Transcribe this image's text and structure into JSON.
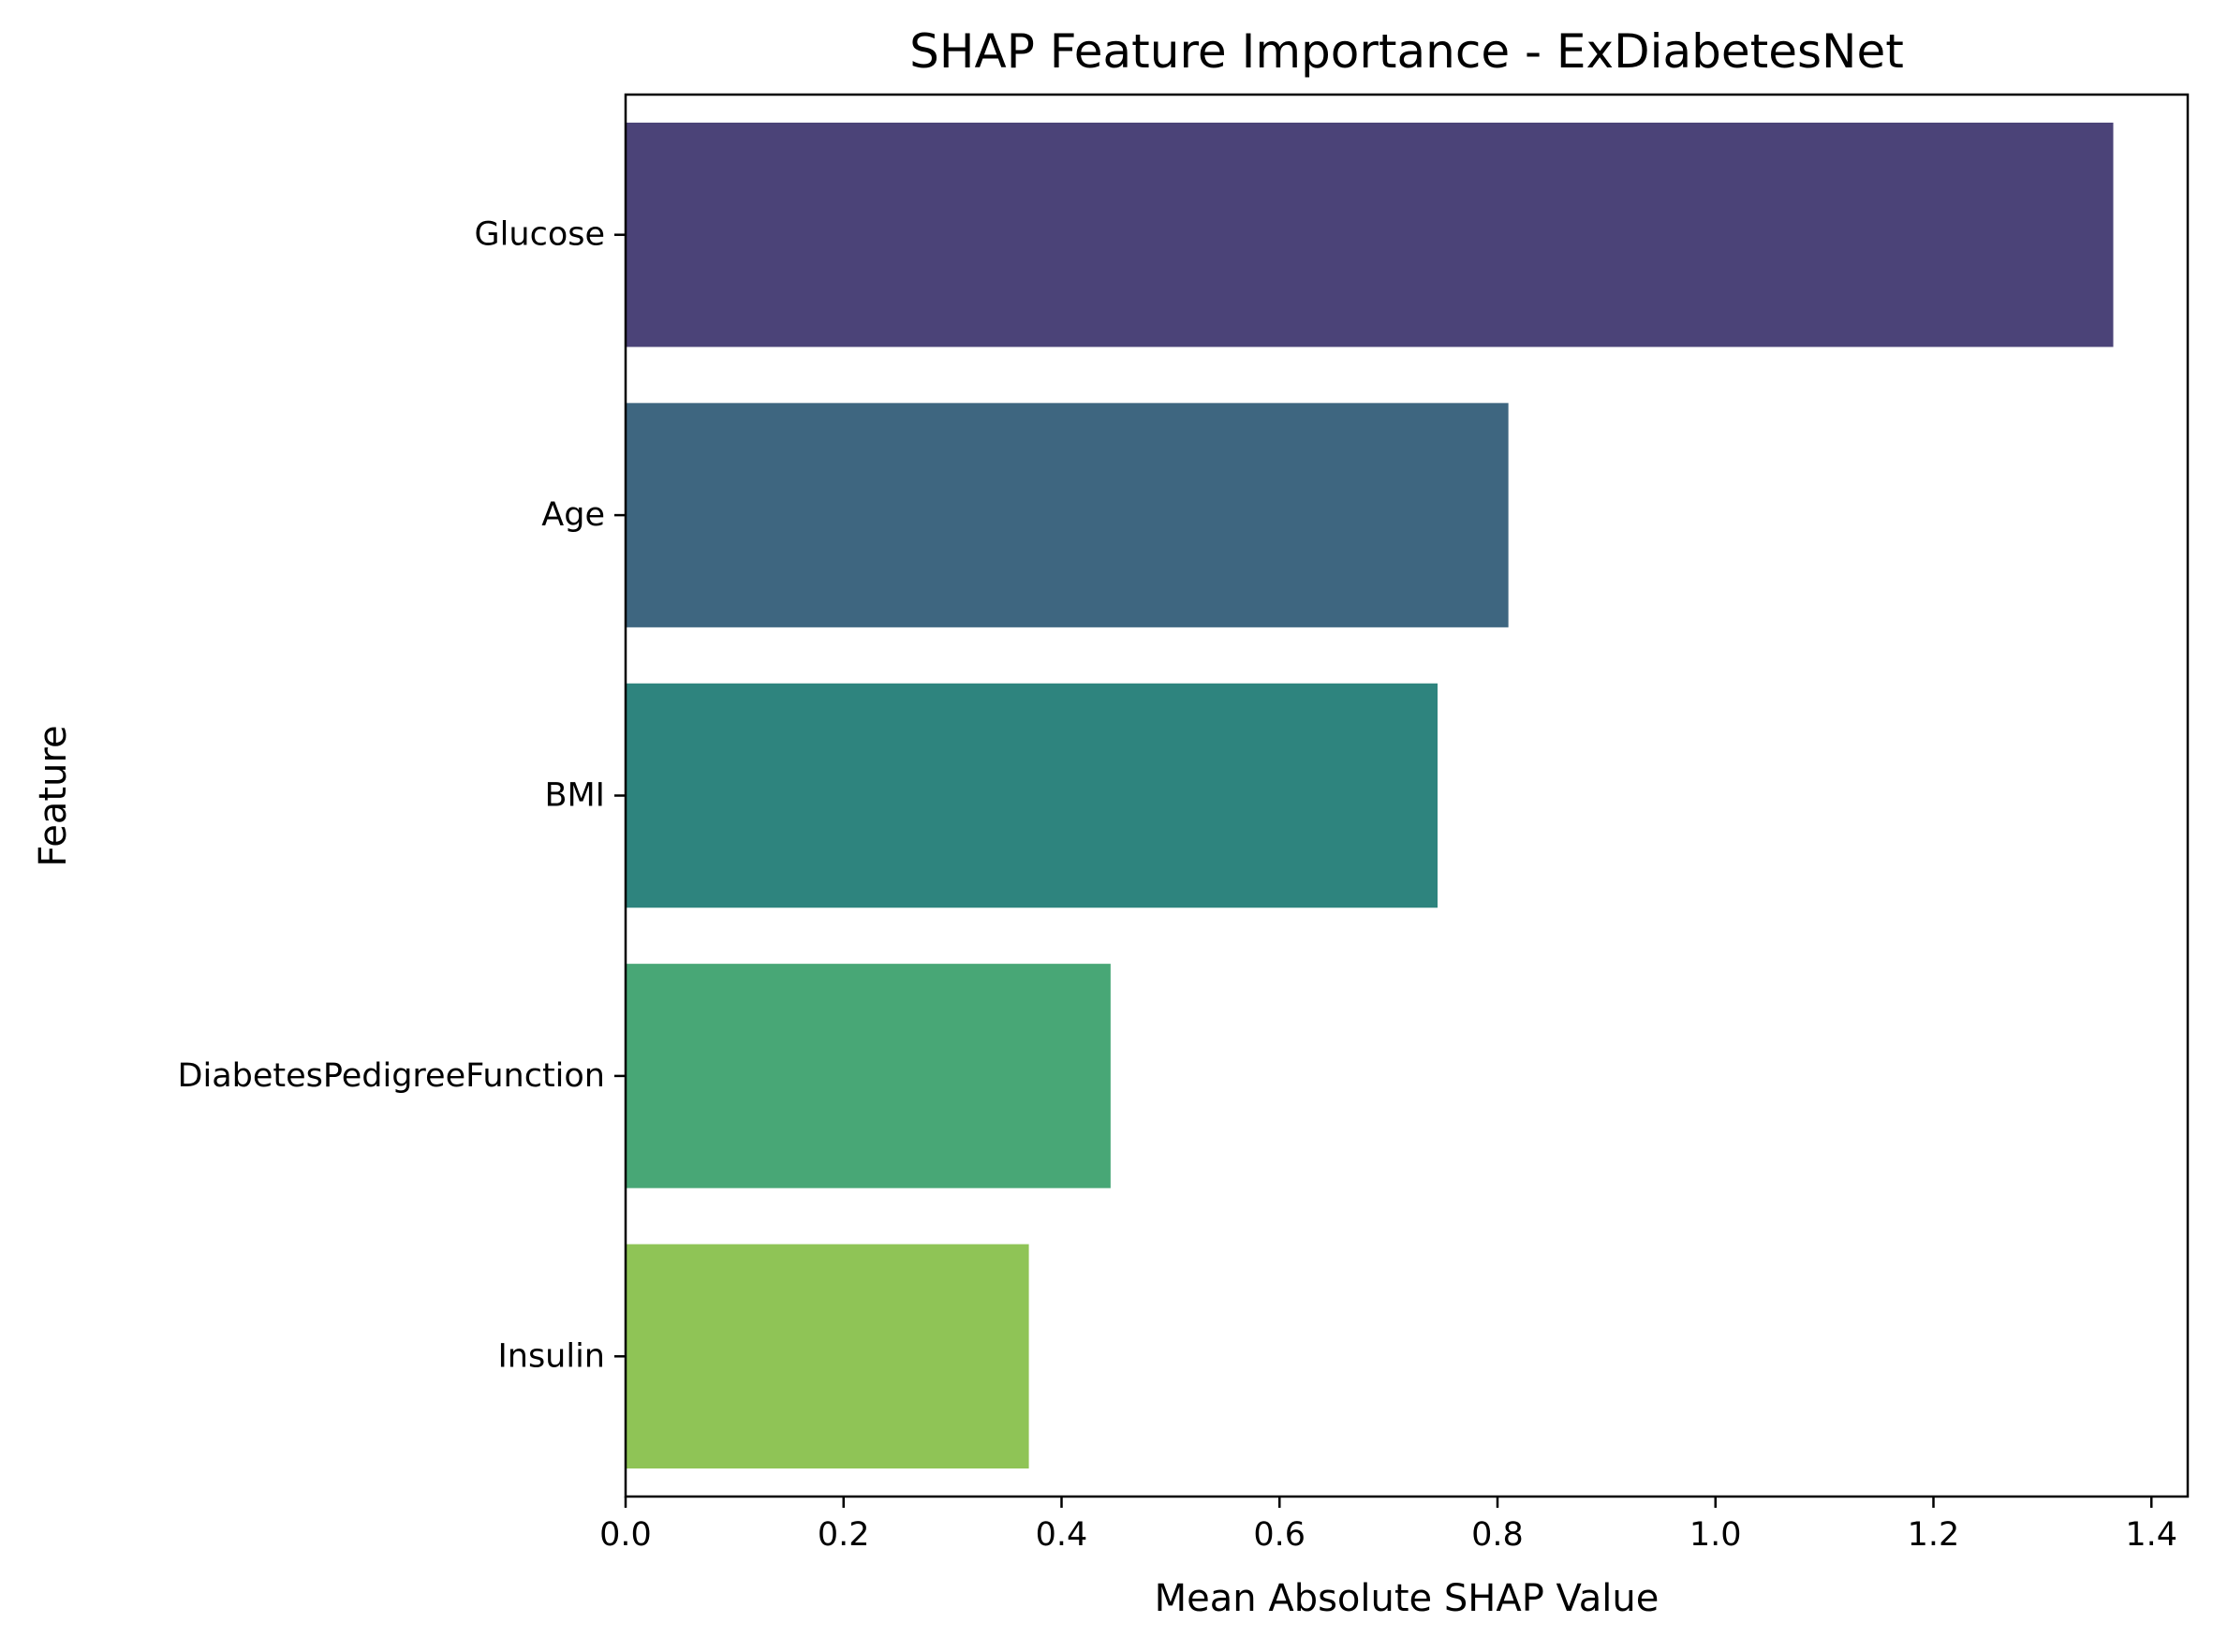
{
  "chart_data": {
    "type": "bar",
    "orientation": "horizontal",
    "title": "SHAP Feature Importance - ExDiabetesNet",
    "xlabel": "Mean Absolute SHAP Value",
    "ylabel": "Feature",
    "categories": [
      "Glucose",
      "Age",
      "BMI",
      "DiabetesPedigreeFunction",
      "Insulin"
    ],
    "values": [
      1.365,
      0.81,
      0.745,
      0.445,
      0.37
    ],
    "colors": [
      "#4b4378",
      "#3e6680",
      "#2e847e",
      "#48a776",
      "#8fc456"
    ],
    "xlim": [
      0,
      1.4333
    ],
    "xticks": [
      0.0,
      0.2,
      0.4,
      0.6,
      0.8,
      1.0,
      1.2,
      1.4
    ],
    "xtick_labels": [
      "0.0",
      "0.2",
      "0.4",
      "0.6",
      "0.8",
      "1.0",
      "1.2",
      "1.4"
    ],
    "grid": false,
    "legend": "none"
  }
}
